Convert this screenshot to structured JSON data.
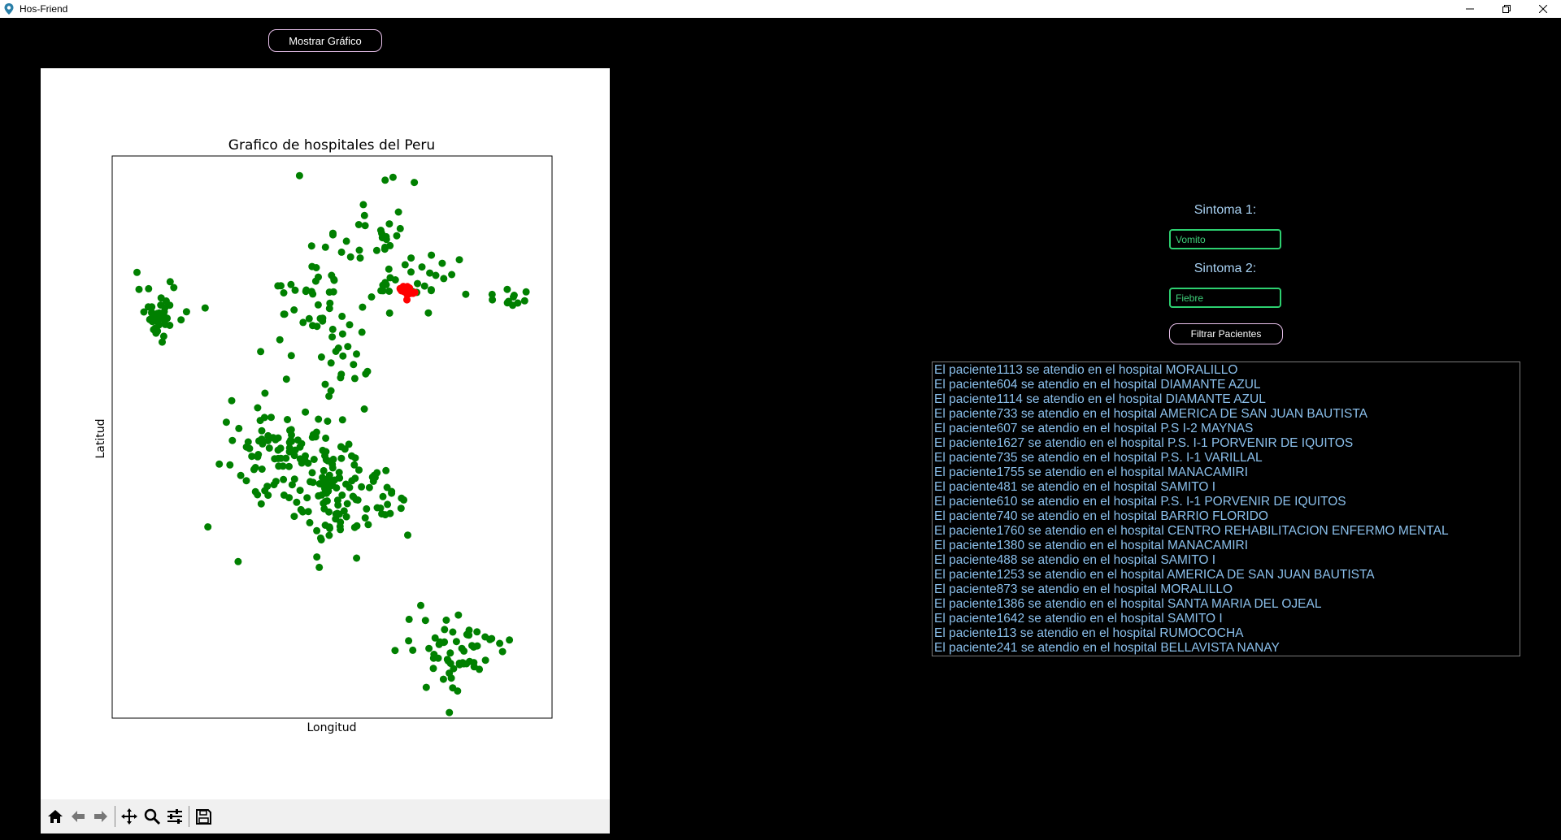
{
  "window": {
    "title": "Hos-Friend"
  },
  "controls": {
    "show_chart_label": "Mostrar Gráfico"
  },
  "chart_data": {
    "type": "scatter",
    "title": "Grafico de hospitales del Peru",
    "xlabel": "Longitud",
    "ylabel": "Latitud",
    "xlim": [
      0,
      100
    ],
    "ylim": [
      0,
      100
    ],
    "xticks_visible": false,
    "yticks_visible": false,
    "grid": false,
    "series": [
      {
        "color": "#008000",
        "clusters": [
          {
            "x": 11,
            "y": 72,
            "sx": 2.6,
            "sy": 2.5,
            "n": 40
          },
          {
            "x": 46,
            "y": 75,
            "sx": 6.5,
            "sy": 6.5,
            "n": 50
          },
          {
            "x": 60,
            "y": 87,
            "sx": 4.5,
            "sy": 4.5,
            "n": 22
          },
          {
            "x": 70,
            "y": 77,
            "sx": 9,
            "sy": 3,
            "n": 30
          },
          {
            "x": 92,
            "y": 75,
            "sx": 2.5,
            "sy": 1,
            "n": 10
          },
          {
            "x": 53,
            "y": 61,
            "sx": 3.5,
            "sy": 5,
            "n": 18
          },
          {
            "x": 38,
            "y": 48,
            "sx": 6,
            "sy": 4,
            "n": 80
          },
          {
            "x": 50,
            "y": 40,
            "sx": 5,
            "sy": 5,
            "n": 100
          },
          {
            "x": 62,
            "y": 38,
            "sx": 3,
            "sy": 3,
            "n": 20
          },
          {
            "x": 78,
            "y": 12,
            "sx": 6,
            "sy": 3.5,
            "n": 60
          }
        ]
      },
      {
        "color": "#ff0000",
        "clusters": [
          {
            "x": 67,
            "y": 76,
            "sx": 0.9,
            "sy": 0.5,
            "n": 25
          }
        ]
      }
    ]
  },
  "toolbar": {
    "buttons": [
      "home-icon",
      "back-arrow-icon",
      "forward-arrow-icon",
      "pan-icon",
      "zoom-icon",
      "configure-icon",
      "save-icon"
    ]
  },
  "filters": {
    "symptom1_label": "Sintoma 1:",
    "symptom1_value": "Vomito",
    "symptom2_label": "Sintoma 2:",
    "symptom2_value": "Fiebre",
    "filter_button": "Filtrar Pacientes"
  },
  "results": [
    "El paciente1113 se atendio en el hospital MORALILLO",
    "El paciente604 se atendio en el hospital DIAMANTE AZUL",
    "El paciente1114 se atendio en el hospital DIAMANTE AZUL",
    "El paciente733 se atendio en el hospital AMERICA DE SAN JUAN BAUTISTA",
    "El paciente607 se atendio en el hospital P.S I-2 MAYNAS",
    "El paciente1627 se atendio en el hospital P.S. I-1 PORVENIR DE IQUITOS",
    "El paciente735 se atendio en el hospital P.S. I-1 VARILLAL",
    "El paciente1755 se atendio en el hospital MANACAMIRI",
    "El paciente481 se atendio en el hospital SAMITO I",
    "El paciente610 se atendio en el hospital P.S. I-1 PORVENIR DE IQUITOS",
    "El paciente740 se atendio en el hospital BARRIO FLORIDO",
    "El paciente1760 se atendio en el hospital CENTRO REHABILITACION ENFERMO MENTAL",
    "El paciente1380 se atendio en el hospital MANACAMIRI",
    "El paciente488 se atendio en el hospital SAMITO I",
    "El paciente1253 se atendio en el hospital AMERICA DE SAN JUAN BAUTISTA",
    "El paciente873 se atendio en el hospital MORALILLO",
    "El paciente1386 se atendio en el hospital SANTA MARIA DEL OJEAL",
    "El paciente1642 se atendio en el hospital SAMITO I",
    "El paciente113 se atendio en el hospital RUMOCOCHA",
    "El paciente241 se atendio en el hospital BELLAVISTA NANAY"
  ]
}
